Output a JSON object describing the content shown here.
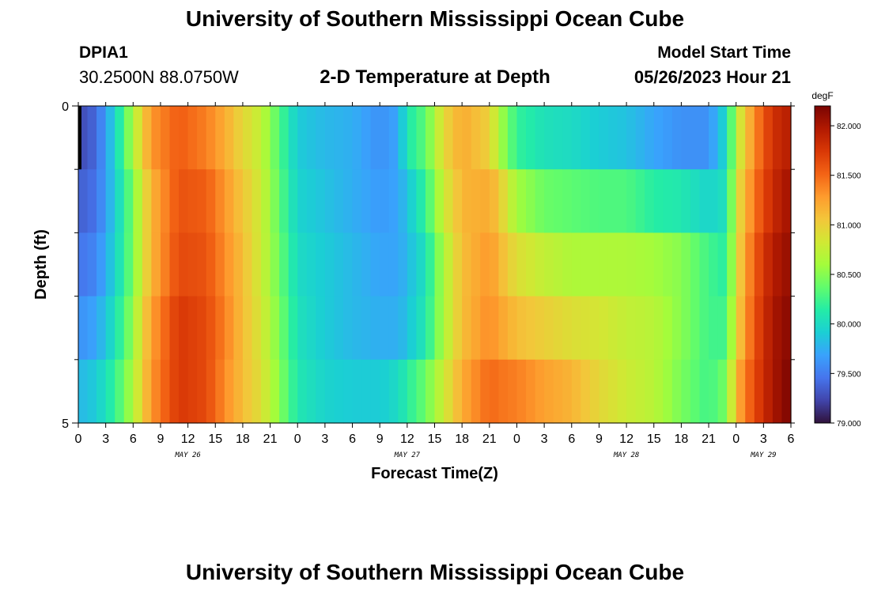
{
  "header": {
    "title": "University of Southern Mississippi Ocean Cube",
    "station": "DPIA1",
    "coords": "30.2500N  88.0750W",
    "plot_title": "2-D Temperature at Depth",
    "start_label": "Model Start Time",
    "start_value": "05/26/2023 Hour 21"
  },
  "footer": {
    "title": "University of Southern Mississippi Ocean Cube"
  },
  "chart_data": {
    "type": "heatmap",
    "title": "2-D Temperature at Depth",
    "xlabel": "Forecast Time(Z)",
    "ylabel": "Depth (ft)",
    "x_unit": "hours from 05/26/2023 00Z",
    "xlim": [
      0,
      78
    ],
    "ylim": [
      0,
      5
    ],
    "x_tick_labels": [
      "0",
      "3",
      "6",
      "9",
      "12",
      "15",
      "18",
      "21",
      "0",
      "3",
      "6",
      "9",
      "12",
      "15",
      "18",
      "21",
      "0",
      "3",
      "6",
      "9",
      "12",
      "15",
      "18",
      "21",
      "0",
      "3",
      "6"
    ],
    "y_tick_labels": [
      "0",
      "5"
    ],
    "date_labels": [
      {
        "text": "MAY 26",
        "hour": 12
      },
      {
        "text": "MAY 27",
        "hour": 36
      },
      {
        "text": "MAY 28",
        "hour": 60
      },
      {
        "text": "MAY 29",
        "hour": 75
      }
    ],
    "depth_layers": [
      0,
      1,
      2,
      3,
      4,
      5
    ],
    "colorbar": {
      "unit": "degF",
      "min": 79.0,
      "max": 82.2,
      "tick_values": [
        79.0,
        79.5,
        80.0,
        80.5,
        81.0,
        81.5,
        82.0
      ],
      "tick_labels": [
        "79.000",
        "79.500",
        "80.000",
        "80.500",
        "81.000",
        "81.500",
        "82.000"
      ]
    },
    "profiles": [
      {
        "hour": 0,
        "values": [
          79.2,
          79.3,
          79.4,
          79.5,
          79.7,
          79.9
        ]
      },
      {
        "hour": 2,
        "values": [
          79.4,
          79.4,
          79.5,
          79.6,
          79.8,
          80.0
        ]
      },
      {
        "hour": 4,
        "values": [
          80.0,
          79.9,
          79.9,
          80.0,
          80.1,
          80.3
        ]
      },
      {
        "hour": 6,
        "values": [
          80.8,
          80.5,
          80.4,
          80.5,
          80.6,
          80.7
        ]
      },
      {
        "hour": 7,
        "values": [
          81.1,
          80.9,
          80.8,
          80.9,
          81.0,
          81.0
        ]
      },
      {
        "hour": 8,
        "values": [
          81.4,
          81.2,
          81.1,
          81.2,
          81.3,
          81.3
        ]
      },
      {
        "hour": 11,
        "values": [
          81.5,
          81.6,
          81.6,
          81.7,
          81.8,
          81.7
        ]
      },
      {
        "hour": 14,
        "values": [
          81.3,
          81.5,
          81.6,
          81.6,
          81.7,
          81.6
        ]
      },
      {
        "hour": 16,
        "values": [
          81.1,
          81.3,
          81.3,
          81.4,
          81.4,
          81.3
        ]
      },
      {
        "hour": 18,
        "values": [
          80.9,
          81.0,
          81.1,
          81.1,
          81.1,
          81.1
        ]
      },
      {
        "hour": 20,
        "values": [
          80.7,
          80.8,
          80.8,
          80.8,
          80.9,
          80.9
        ]
      },
      {
        "hour": 22,
        "values": [
          80.3,
          80.3,
          80.4,
          80.4,
          80.5,
          80.5
        ]
      },
      {
        "hour": 24,
        "values": [
          79.9,
          79.9,
          80.0,
          80.0,
          80.1,
          80.1
        ]
      },
      {
        "hour": 27,
        "values": [
          79.8,
          79.8,
          79.9,
          79.9,
          79.9,
          80.0
        ]
      },
      {
        "hour": 30,
        "values": [
          79.8,
          79.7,
          79.8,
          79.8,
          79.8,
          80.0
        ]
      },
      {
        "hour": 33,
        "values": [
          79.6,
          79.6,
          79.7,
          79.7,
          79.8,
          80.0
        ]
      },
      {
        "hour": 35,
        "values": [
          79.7,
          79.7,
          79.7,
          79.7,
          79.8,
          80.2
        ]
      },
      {
        "hour": 36,
        "values": [
          80.3,
          79.9,
          79.8,
          79.8,
          79.9,
          80.4
        ]
      },
      {
        "hour": 38,
        "values": [
          80.4,
          80.3,
          80.1,
          80.0,
          80.2,
          80.6
        ]
      },
      {
        "hour": 40,
        "values": [
          81.0,
          80.9,
          80.7,
          80.6,
          80.7,
          80.9
        ]
      },
      {
        "hour": 42,
        "values": [
          81.2,
          81.2,
          81.1,
          81.1,
          81.1,
          81.3
        ]
      },
      {
        "hour": 45,
        "values": [
          80.9,
          81.1,
          81.3,
          81.3,
          81.4,
          81.6
        ]
      },
      {
        "hour": 46,
        "values": [
          80.3,
          81.0,
          81.1,
          81.2,
          81.3,
          81.6
        ]
      },
      {
        "hour": 48,
        "values": [
          80.0,
          80.4,
          80.8,
          81.0,
          81.2,
          81.6
        ]
      },
      {
        "hour": 51,
        "values": [
          79.9,
          80.2,
          80.6,
          80.9,
          81.1,
          81.4
        ]
      },
      {
        "hour": 54,
        "values": [
          79.8,
          80.2,
          80.5,
          80.8,
          81.0,
          81.3
        ]
      },
      {
        "hour": 57,
        "values": [
          79.7,
          80.1,
          80.5,
          80.8,
          80.9,
          81.0
        ]
      },
      {
        "hour": 60,
        "values": [
          79.6,
          80.1,
          80.5,
          80.8,
          80.7,
          80.9
        ]
      },
      {
        "hour": 63,
        "values": [
          79.5,
          79.9,
          80.4,
          80.8,
          80.6,
          80.8
        ]
      },
      {
        "hour": 66,
        "values": [
          79.4,
          79.8,
          80.4,
          80.6,
          80.4,
          80.5
        ]
      },
      {
        "hour": 69,
        "values": [
          79.5,
          79.7,
          80.2,
          80.3,
          80.2,
          80.3
        ]
      },
      {
        "hour": 71,
        "values": [
          80.0,
          80.0,
          80.1,
          80.2,
          80.3,
          80.6
        ]
      },
      {
        "hour": 72,
        "values": [
          80.6,
          80.8,
          80.9,
          80.9,
          81.0,
          81.3
        ]
      },
      {
        "hour": 74,
        "values": [
          81.3,
          81.4,
          81.5,
          81.6,
          81.6,
          81.7
        ]
      },
      {
        "hour": 76,
        "values": [
          81.8,
          81.8,
          81.9,
          82.0,
          82.0,
          82.0
        ]
      },
      {
        "hour": 78,
        "values": [
          81.9,
          82.0,
          82.1,
          82.1,
          82.2,
          82.2
        ]
      }
    ]
  }
}
